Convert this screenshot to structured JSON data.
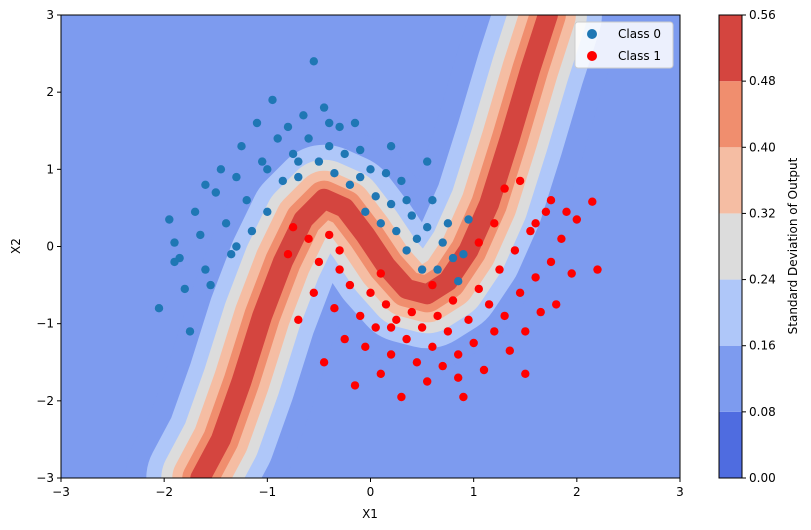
{
  "chart_data": {
    "type": "scatter",
    "subtype": "filled-contour with scatter overlay",
    "title": "",
    "xlabel": "X1",
    "ylabel": "X2",
    "xlim": [
      -3,
      3
    ],
    "ylim": [
      -3,
      3
    ],
    "xticks": [
      "−3",
      "−2",
      "−1",
      "0",
      "1",
      "2",
      "3"
    ],
    "yticks": [
      "−3",
      "−2",
      "−1",
      "0",
      "1",
      "2",
      "3"
    ],
    "grid": false,
    "legend": {
      "placement": "top-right"
    },
    "contour": {
      "quantity": "uncertainty band centred on the decision boundary",
      "boundary_curve": [
        [
          -1.65,
          -3.0
        ],
        [
          -1.45,
          -2.5
        ],
        [
          -1.25,
          -1.75
        ],
        [
          -1.05,
          -0.9
        ],
        [
          -0.85,
          -0.2
        ],
        [
          -0.65,
          0.35
        ],
        [
          -0.45,
          0.62
        ],
        [
          -0.25,
          0.5
        ],
        [
          -0.05,
          0.15
        ],
        [
          0.15,
          -0.25
        ],
        [
          0.35,
          -0.55
        ],
        [
          0.55,
          -0.62
        ],
        [
          0.75,
          -0.45
        ],
        [
          0.95,
          -0.05
        ],
        [
          1.15,
          0.55
        ],
        [
          1.35,
          1.4
        ],
        [
          1.55,
          2.3
        ],
        [
          1.72,
          3.0
        ]
      ],
      "levels": [
        0.0,
        0.08,
        0.16,
        0.24,
        0.32,
        0.4,
        0.48,
        0.56
      ],
      "colors": [
        "#4f6ce0",
        "#7d9bef",
        "#afc7f9",
        "#dcdcdc",
        "#f5bda3",
        "#f08e6e",
        "#d4453f"
      ]
    },
    "colorbar": {
      "label": "Standard Deviation of Output",
      "ticks": [
        "0.00",
        "0.08",
        "0.16",
        "0.24",
        "0.32",
        "0.40",
        "0.48",
        "0.56"
      ]
    },
    "series": [
      {
        "name": "Class 0",
        "color": "#1f77b4",
        "points": [
          [
            -2.05,
            -0.8
          ],
          [
            -1.95,
            0.35
          ],
          [
            -1.9,
            0.05
          ],
          [
            -1.85,
            -0.15
          ],
          [
            -1.8,
            -0.55
          ],
          [
            -1.75,
            -1.1
          ],
          [
            -1.7,
            0.45
          ],
          [
            -1.65,
            0.15
          ],
          [
            -1.6,
            -0.3
          ],
          [
            -1.55,
            -0.5
          ],
          [
            -1.5,
            0.7
          ],
          [
            -1.45,
            1.0
          ],
          [
            -1.4,
            0.3
          ],
          [
            -1.35,
            -0.1
          ],
          [
            -1.3,
            0.9
          ],
          [
            -1.25,
            1.3
          ],
          [
            -1.2,
            0.6
          ],
          [
            -1.15,
            0.2
          ],
          [
            -1.1,
            1.6
          ],
          [
            -1.05,
            1.1
          ],
          [
            -1.0,
            0.45
          ],
          [
            -0.95,
            1.9
          ],
          [
            -0.9,
            1.4
          ],
          [
            -0.85,
            0.85
          ],
          [
            -0.8,
            1.55
          ],
          [
            -0.75,
            1.2
          ],
          [
            -0.7,
            0.9
          ],
          [
            -0.65,
            1.7
          ],
          [
            -0.6,
            1.4
          ],
          [
            -0.55,
            2.4
          ],
          [
            -0.5,
            1.1
          ],
          [
            -0.45,
            1.8
          ],
          [
            -0.4,
            1.3
          ],
          [
            -0.35,
            0.95
          ],
          [
            -0.3,
            1.55
          ],
          [
            -0.25,
            1.2
          ],
          [
            -0.2,
            0.8
          ],
          [
            -0.15,
            1.6
          ],
          [
            -0.1,
            1.25
          ],
          [
            -0.05,
            0.45
          ],
          [
            0.0,
            1.0
          ],
          [
            0.05,
            0.65
          ],
          [
            0.1,
            0.3
          ],
          [
            0.15,
            0.95
          ],
          [
            0.2,
            0.55
          ],
          [
            0.25,
            0.2
          ],
          [
            0.3,
            0.85
          ],
          [
            0.35,
            -0.05
          ],
          [
            0.4,
            0.4
          ],
          [
            0.45,
            0.1
          ],
          [
            0.5,
            -0.3
          ],
          [
            0.55,
            0.25
          ],
          [
            0.6,
            0.6
          ],
          [
            0.65,
            -0.3
          ],
          [
            0.7,
            0.05
          ],
          [
            0.75,
            0.3
          ],
          [
            0.8,
            -0.15
          ],
          [
            0.85,
            -0.45
          ],
          [
            0.9,
            -0.1
          ],
          [
            0.95,
            0.35
          ],
          [
            -1.9,
            -0.2
          ],
          [
            -1.6,
            0.8
          ],
          [
            -1.3,
            0.0
          ],
          [
            -1.0,
            1.0
          ],
          [
            -0.7,
            1.1
          ],
          [
            -0.4,
            1.6
          ],
          [
            -0.1,
            0.9
          ],
          [
            0.2,
            1.3
          ],
          [
            0.35,
            0.6
          ],
          [
            0.55,
            1.1
          ]
        ]
      },
      {
        "name": "Class 1",
        "color": "#ff0000",
        "points": [
          [
            -0.8,
            -0.1
          ],
          [
            -0.75,
            0.25
          ],
          [
            -0.7,
            -0.95
          ],
          [
            -0.6,
            0.1
          ],
          [
            -0.55,
            -0.6
          ],
          [
            -0.5,
            -0.2
          ],
          [
            -0.45,
            -1.5
          ],
          [
            -0.4,
            0.15
          ],
          [
            -0.35,
            -0.8
          ],
          [
            -0.3,
            -0.3
          ],
          [
            -0.25,
            -1.2
          ],
          [
            -0.2,
            -0.5
          ],
          [
            -0.15,
            -1.8
          ],
          [
            -0.1,
            -0.9
          ],
          [
            -0.05,
            -1.3
          ],
          [
            0.0,
            -0.6
          ],
          [
            0.05,
            -1.05
          ],
          [
            0.1,
            -1.65
          ],
          [
            0.15,
            -0.75
          ],
          [
            0.2,
            -1.4
          ],
          [
            0.25,
            -0.95
          ],
          [
            0.3,
            -1.95
          ],
          [
            0.35,
            -1.2
          ],
          [
            0.4,
            -0.85
          ],
          [
            0.45,
            -1.5
          ],
          [
            0.5,
            -1.05
          ],
          [
            0.55,
            -1.75
          ],
          [
            0.6,
            -1.3
          ],
          [
            0.65,
            -0.9
          ],
          [
            0.7,
            -1.55
          ],
          [
            0.75,
            -1.1
          ],
          [
            0.8,
            -0.7
          ],
          [
            0.85,
            -1.4
          ],
          [
            0.9,
            -1.95
          ],
          [
            0.95,
            -0.95
          ],
          [
            1.0,
            -1.25
          ],
          [
            1.05,
            -0.55
          ],
          [
            1.1,
            -1.6
          ],
          [
            1.15,
            -0.75
          ],
          [
            1.2,
            -1.1
          ],
          [
            1.25,
            -0.3
          ],
          [
            1.3,
            -0.9
          ],
          [
            1.35,
            -1.35
          ],
          [
            1.4,
            -0.05
          ],
          [
            1.45,
            -0.6
          ],
          [
            1.5,
            -1.1
          ],
          [
            1.55,
            0.2
          ],
          [
            1.6,
            -0.4
          ],
          [
            1.65,
            -0.85
          ],
          [
            1.7,
            0.45
          ],
          [
            1.75,
            -0.2
          ],
          [
            1.8,
            -0.75
          ],
          [
            1.85,
            0.1
          ],
          [
            1.9,
            0.45
          ],
          [
            1.95,
            -0.35
          ],
          [
            2.0,
            0.35
          ],
          [
            2.2,
            -0.3
          ],
          [
            2.15,
            0.58
          ],
          [
            1.3,
            0.75
          ],
          [
            1.45,
            0.85
          ],
          [
            1.2,
            0.3
          ],
          [
            1.05,
            0.05
          ],
          [
            1.6,
            0.3
          ],
          [
            1.75,
            0.6
          ],
          [
            1.5,
            -1.65
          ],
          [
            0.2,
            -1.05
          ],
          [
            0.1,
            -0.35
          ],
          [
            -0.3,
            -0.05
          ],
          [
            0.6,
            -0.5
          ],
          [
            0.85,
            -1.7
          ]
        ]
      }
    ]
  }
}
